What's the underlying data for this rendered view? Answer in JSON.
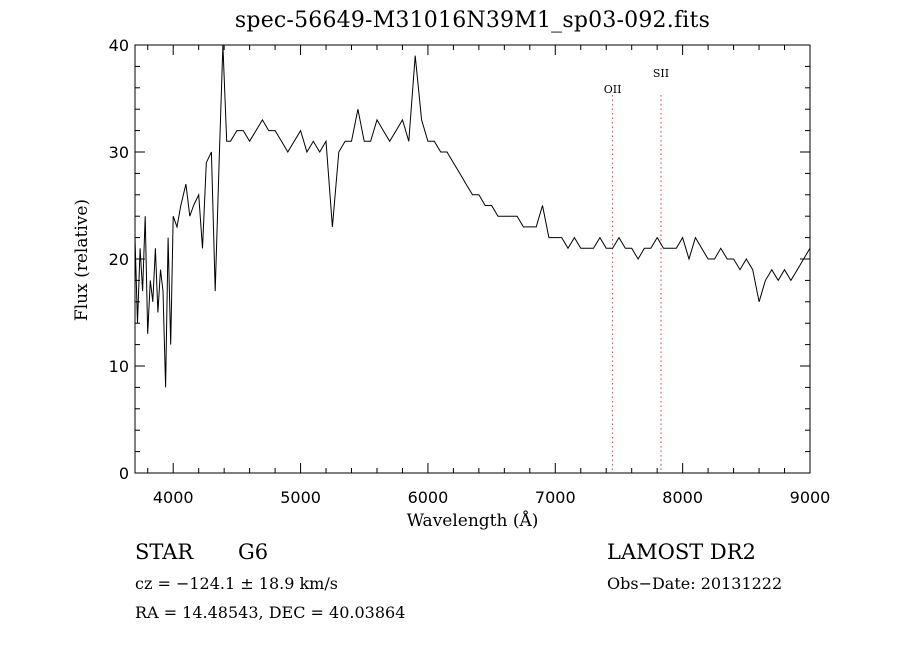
{
  "header": {
    "title": "spec-56649-M31016N39M1_sp03-092.fits"
  },
  "info": {
    "object_class": "STAR",
    "object_subclass": "G6",
    "survey": "LAMOST DR2",
    "cz": "cz = −124.1 ± 18.9 km/s",
    "obs_date": "Obs−Date: 20131222",
    "radec": "RA =  14.48543, DEC =  40.03864"
  },
  "chart_data": {
    "type": "line",
    "title": "spec-56649-M31016N39M1_sp03-092.fits",
    "xlabel": "Wavelength (Å)",
    "ylabel": "Flux (relative)",
    "xlim": [
      3700,
      9000
    ],
    "ylim": [
      0,
      40
    ],
    "x_ticks": [
      4000,
      5000,
      6000,
      7000,
      8000,
      9000
    ],
    "y_ticks": [
      0,
      10,
      20,
      30,
      40
    ],
    "line_markers": [
      {
        "label": "OII",
        "x": 7450,
        "label_y": 35.5
      },
      {
        "label": "SII",
        "x": 7830,
        "label_y": 37.0
      }
    ],
    "marker_color": "#d04040",
    "series": [
      {
        "x": [
          3700,
          3720,
          3740,
          3760,
          3780,
          3800,
          3820,
          3840,
          3860,
          3880,
          3900,
          3920,
          3940,
          3960,
          3980,
          4000,
          4030,
          4060,
          4100,
          4130,
          4160,
          4200,
          4230,
          4260,
          4300,
          4330,
          4360,
          4390,
          4420,
          4450,
          4500,
          4550,
          4600,
          4650,
          4700,
          4750,
          4800,
          4850,
          4900,
          4950,
          5000,
          5050,
          5100,
          5150,
          5200,
          5250,
          5300,
          5350,
          5400,
          5450,
          5500,
          5550,
          5600,
          5650,
          5700,
          5750,
          5800,
          5850,
          5900,
          5950,
          6000,
          6050,
          6100,
          6150,
          6200,
          6250,
          6300,
          6350,
          6400,
          6450,
          6500,
          6550,
          6600,
          6650,
          6700,
          6750,
          6800,
          6850,
          6900,
          6950,
          7000,
          7050,
          7100,
          7150,
          7200,
          7250,
          7300,
          7350,
          7400,
          7450,
          7500,
          7550,
          7600,
          7650,
          7700,
          7750,
          7800,
          7850,
          7900,
          7950,
          8000,
          8050,
          8100,
          8150,
          8200,
          8250,
          8300,
          8350,
          8400,
          8450,
          8500,
          8550,
          8600,
          8650,
          8700,
          8750,
          8800,
          8850,
          8900,
          8950,
          9000
        ],
        "y": [
          22,
          14,
          21,
          17,
          24,
          13,
          18,
          16,
          21,
          15,
          19,
          17,
          8,
          22,
          12,
          24,
          23,
          25,
          27,
          24,
          25,
          26,
          21,
          29,
          30,
          17,
          29,
          40,
          31,
          31,
          32,
          32,
          31,
          32,
          33,
          32,
          32,
          31,
          30,
          31,
          32,
          30,
          31,
          30,
          31,
          23,
          30,
          31,
          31,
          34,
          31,
          31,
          33,
          32,
          31,
          32,
          33,
          31,
          39,
          33,
          31,
          31,
          30,
          30,
          29,
          28,
          27,
          26,
          26,
          25,
          25,
          24,
          24,
          24,
          24,
          23,
          23,
          23,
          25,
          22,
          22,
          22,
          21,
          22,
          21,
          21,
          21,
          22,
          21,
          21,
          22,
          21,
          21,
          20,
          21,
          21,
          22,
          21,
          21,
          21,
          22,
          20,
          22,
          21,
          20,
          20,
          21,
          20,
          20,
          19,
          20,
          19,
          16,
          18,
          19,
          18,
          19,
          18,
          19,
          20,
          21
        ]
      }
    ]
  }
}
